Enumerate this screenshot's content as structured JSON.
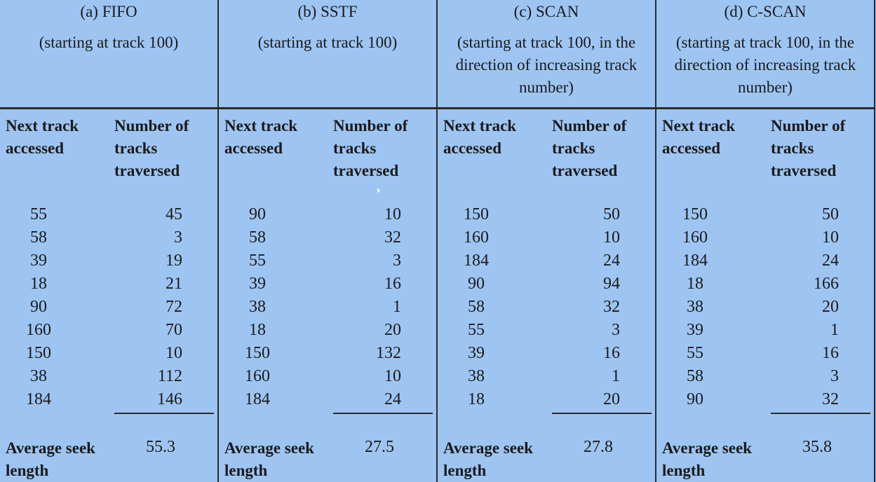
{
  "columns": [
    {
      "title": "(a) FIFO",
      "subtitle": "(starting at track 100)",
      "col_head_left": "Next track accessed",
      "col_head_right": "Number of tracks traversed",
      "rows": [
        {
          "next": "55",
          "traversed": "45"
        },
        {
          "next": "58",
          "traversed": "3"
        },
        {
          "next": "39",
          "traversed": "19"
        },
        {
          "next": "18",
          "traversed": "21"
        },
        {
          "next": "90",
          "traversed": "72"
        },
        {
          "next": "160",
          "traversed": "70"
        },
        {
          "next": "150",
          "traversed": "10"
        },
        {
          "next": "38",
          "traversed": "112"
        },
        {
          "next": "184",
          "traversed": "146"
        }
      ],
      "avg_label": "Average seek length",
      "avg_value": "55.3"
    },
    {
      "title": "(b) SSTF",
      "subtitle": "(starting at track 100)",
      "col_head_left": "Next track accessed",
      "col_head_right": "Number of tracks traversed",
      "rows": [
        {
          "next": "90",
          "traversed": "10"
        },
        {
          "next": "58",
          "traversed": "32"
        },
        {
          "next": "55",
          "traversed": "3"
        },
        {
          "next": "39",
          "traversed": "16"
        },
        {
          "next": "38",
          "traversed": "1"
        },
        {
          "next": "18",
          "traversed": "20"
        },
        {
          "next": "150",
          "traversed": "132"
        },
        {
          "next": "160",
          "traversed": "10"
        },
        {
          "next": "184",
          "traversed": "24"
        }
      ],
      "avg_label": "Average seek length",
      "avg_value": "27.5"
    },
    {
      "title": "(c) SCAN",
      "subtitle": "(starting at track 100, in the direction of increasing track number)",
      "col_head_left": "Next track accessed",
      "col_head_right": "Number of tracks traversed",
      "rows": [
        {
          "next": "150",
          "traversed": "50"
        },
        {
          "next": "160",
          "traversed": "10"
        },
        {
          "next": "184",
          "traversed": "24"
        },
        {
          "next": "90",
          "traversed": "94"
        },
        {
          "next": "58",
          "traversed": "32"
        },
        {
          "next": "55",
          "traversed": "3"
        },
        {
          "next": "39",
          "traversed": "16"
        },
        {
          "next": "38",
          "traversed": "1"
        },
        {
          "next": "18",
          "traversed": "20"
        }
      ],
      "avg_label": "Average seek length",
      "avg_value": "27.8"
    },
    {
      "title": "(d) C-SCAN",
      "subtitle": "(starting at track 100, in the direction of increasing track number)",
      "col_head_left": "Next track accessed",
      "col_head_right": "Number of tracks traversed",
      "rows": [
        {
          "next": "150",
          "traversed": "50"
        },
        {
          "next": "160",
          "traversed": "10"
        },
        {
          "next": "184",
          "traversed": "24"
        },
        {
          "next": "18",
          "traversed": "166"
        },
        {
          "next": "38",
          "traversed": "20"
        },
        {
          "next": "39",
          "traversed": "1"
        },
        {
          "next": "55",
          "traversed": "16"
        },
        {
          "next": "58",
          "traversed": "3"
        },
        {
          "next": "90",
          "traversed": "32"
        }
      ],
      "avg_label": "Average seek length",
      "avg_value": "35.8"
    }
  ]
}
